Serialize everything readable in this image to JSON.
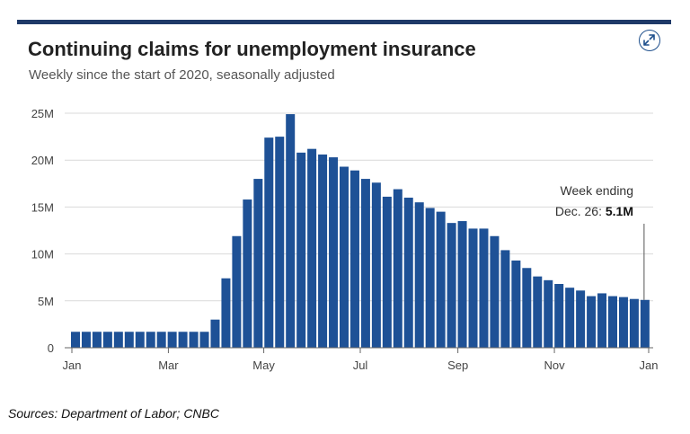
{
  "colors": {
    "accent": "#1f3a68",
    "bar": "#1e5196",
    "text": "#222222",
    "axis_text": "#444444",
    "grid": "#d9d9d9"
  },
  "header": {
    "title": "Continuing claims for unemployment insurance",
    "subtitle": "Weekly since the start of 2020, seasonally adjusted",
    "expand_icon": "expand-arrows-icon"
  },
  "source": "Sources:  Department of Labor; CNBC",
  "chart_data": {
    "type": "bar",
    "title": "Continuing claims for unemployment insurance",
    "subtitle": "Weekly since the start of 2020, seasonally adjusted",
    "xlabel": "",
    "ylabel": "",
    "unit": "millions",
    "ylim": [
      0,
      25
    ],
    "y_ticks": [
      0,
      5,
      10,
      15,
      20,
      25
    ],
    "y_tick_labels": [
      "0",
      "5M",
      "10M",
      "15M",
      "20M",
      "25M"
    ],
    "x_tick_labels": [
      "Jan",
      "Mar",
      "May",
      "Jul",
      "Sep",
      "Nov",
      "Jan"
    ],
    "x_tick_weeks": [
      0,
      8.7,
      17.3,
      26,
      34.8,
      43.5,
      52
    ],
    "grid": true,
    "values": [
      1.7,
      1.7,
      1.7,
      1.7,
      1.7,
      1.7,
      1.7,
      1.7,
      1.7,
      1.7,
      1.7,
      1.7,
      1.7,
      3.0,
      7.4,
      11.9,
      15.8,
      18.0,
      22.4,
      22.5,
      24.9,
      20.8,
      21.2,
      20.6,
      20.3,
      19.3,
      18.9,
      18.0,
      17.6,
      16.1,
      16.9,
      16.0,
      15.5,
      14.9,
      14.5,
      13.3,
      13.5,
      12.7,
      12.7,
      11.9,
      10.4,
      9.3,
      8.5,
      7.6,
      7.2,
      6.8,
      6.4,
      6.1,
      5.5,
      5.8,
      5.5,
      5.4,
      5.2,
      5.1
    ],
    "annotation": {
      "line1": "Week ending",
      "line2_prefix": "Dec. 26: ",
      "line2_value": "5.1M"
    }
  }
}
